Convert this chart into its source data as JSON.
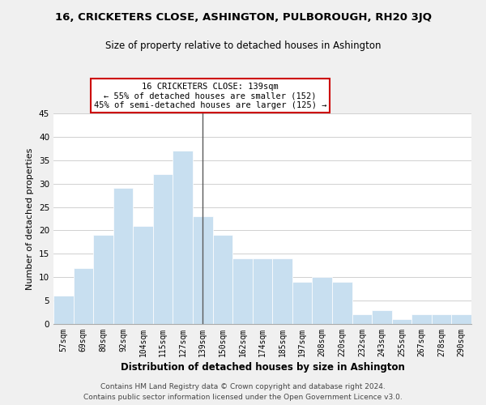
{
  "title": "16, CRICKETERS CLOSE, ASHINGTON, PULBOROUGH, RH20 3JQ",
  "subtitle": "Size of property relative to detached houses in Ashington",
  "xlabel": "Distribution of detached houses by size in Ashington",
  "ylabel": "Number of detached properties",
  "footer_lines": [
    "Contains HM Land Registry data © Crown copyright and database right 2024.",
    "Contains public sector information licensed under the Open Government Licence v3.0."
  ],
  "bin_labels": [
    "57sqm",
    "69sqm",
    "80sqm",
    "92sqm",
    "104sqm",
    "115sqm",
    "127sqm",
    "139sqm",
    "150sqm",
    "162sqm",
    "174sqm",
    "185sqm",
    "197sqm",
    "208sqm",
    "220sqm",
    "232sqm",
    "243sqm",
    "255sqm",
    "267sqm",
    "278sqm",
    "290sqm"
  ],
  "bar_heights": [
    6,
    12,
    19,
    29,
    21,
    32,
    37,
    23,
    19,
    14,
    14,
    14,
    9,
    10,
    9,
    2,
    3,
    1,
    2,
    2,
    2
  ],
  "bar_color": "#c8dff0",
  "bar_edge_color": "#ffffff",
  "highlight_bar_index": 7,
  "highlight_line_color": "#5a5a5a",
  "annotation_box_text": "16 CRICKETERS CLOSE: 139sqm\n← 55% of detached houses are smaller (152)\n45% of semi-detached houses are larger (125) →",
  "annotation_box_facecolor": "#ffffff",
  "annotation_box_edgecolor": "#cc0000",
  "ylim": [
    0,
    45
  ],
  "yticks": [
    0,
    5,
    10,
    15,
    20,
    25,
    30,
    35,
    40,
    45
  ],
  "grid_color": "#d0d0d0",
  "background_color": "#f0f0f0",
  "plot_bg_color": "#ffffff"
}
